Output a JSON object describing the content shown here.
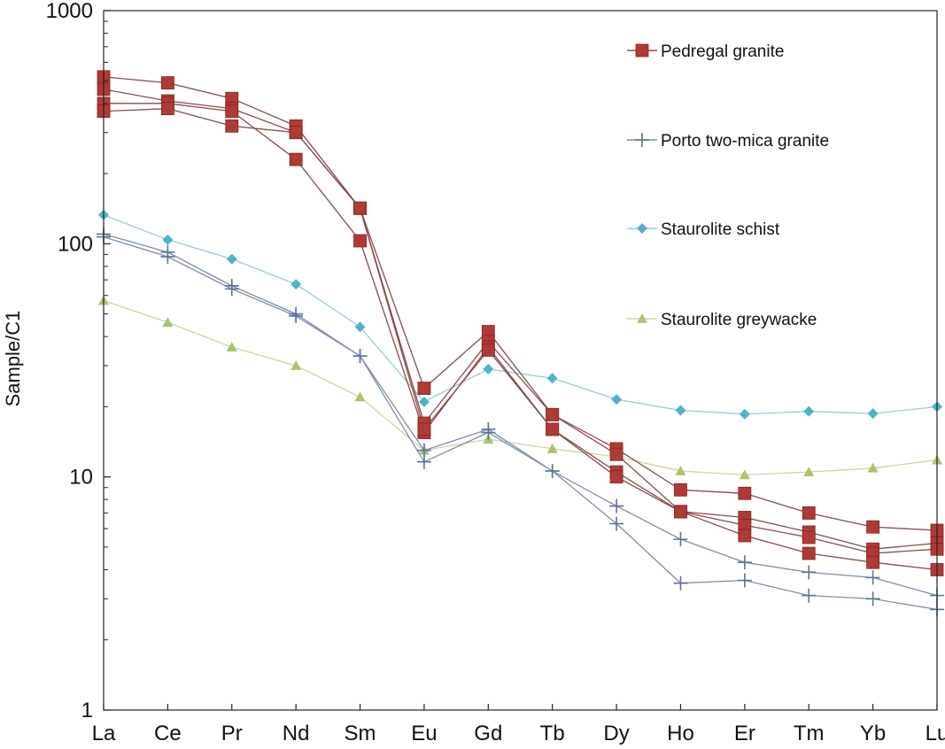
{
  "chart_data": {
    "type": "line",
    "title": "",
    "xlabel": "",
    "ylabel": "Sample/C1",
    "yscale": "log",
    "ylim": [
      1,
      1000
    ],
    "yticks": [
      "1",
      "10",
      "100",
      "1000"
    ],
    "categories": [
      "La",
      "Ce",
      "Pr",
      "Nd",
      "Sm",
      "Eu",
      "Gd",
      "Tb",
      "Dy",
      "Ho",
      "Er",
      "Tm",
      "Yb",
      "Lu"
    ],
    "grid": false,
    "legend_position": "top-right",
    "groups": [
      {
        "name": "Pedregal granite",
        "marker": "square",
        "color": "#b03a36",
        "line_color": "#8c4a48",
        "series": [
          [
            520,
            490,
            420,
            320,
            142,
            24,
            42,
            18.5,
            13.2,
            8.8,
            8.5,
            7.0,
            6.1,
            5.9
          ],
          [
            460,
            410,
            380,
            300,
            142,
            17,
            38,
            18.5,
            12.5,
            7.1,
            6.7,
            5.8,
            4.9,
            5.2
          ],
          [
            400,
            400,
            370,
            230,
            103,
            15.5,
            36,
            16,
            10.5,
            7.1,
            6.2,
            5.5,
            4.7,
            4.9
          ],
          [
            370,
            380,
            320,
            300,
            142,
            16,
            35,
            16,
            10,
            7.1,
            5.6,
            4.7,
            4.3,
            4.0
          ]
        ]
      },
      {
        "name": "Porto two-mica granite",
        "marker": "plus",
        "color": "#5b7396",
        "line_color": "#7a8fad",
        "series": [
          [
            110,
            92,
            66,
            50,
            33,
            13,
            16,
            10.6,
            7.5,
            5.4,
            4.3,
            3.9,
            3.7,
            3.1
          ],
          [
            107,
            88,
            64,
            49,
            33,
            11.6,
            15.5,
            10.6,
            6.3,
            3.5,
            3.6,
            3.1,
            3.0,
            2.7
          ]
        ]
      },
      {
        "name": "Staurolite schist",
        "marker": "diamond",
        "color": "#4fb3c8",
        "line_color": "#8fd0dc",
        "series": [
          [
            133,
            104,
            86,
            67,
            44,
            21,
            29,
            26.5,
            21.5,
            19.3,
            18.6,
            19.1,
            18.7,
            20
          ]
        ]
      },
      {
        "name": "Staurolite greywacke",
        "marker": "triangle",
        "color": "#a9c46c",
        "line_color": "#c7da9c",
        "series": [
          [
            57,
            46,
            36,
            30,
            22,
            13,
            14.5,
            13.2,
            12.2,
            10.6,
            10.2,
            10.5,
            10.9,
            11.8
          ]
        ]
      }
    ]
  }
}
